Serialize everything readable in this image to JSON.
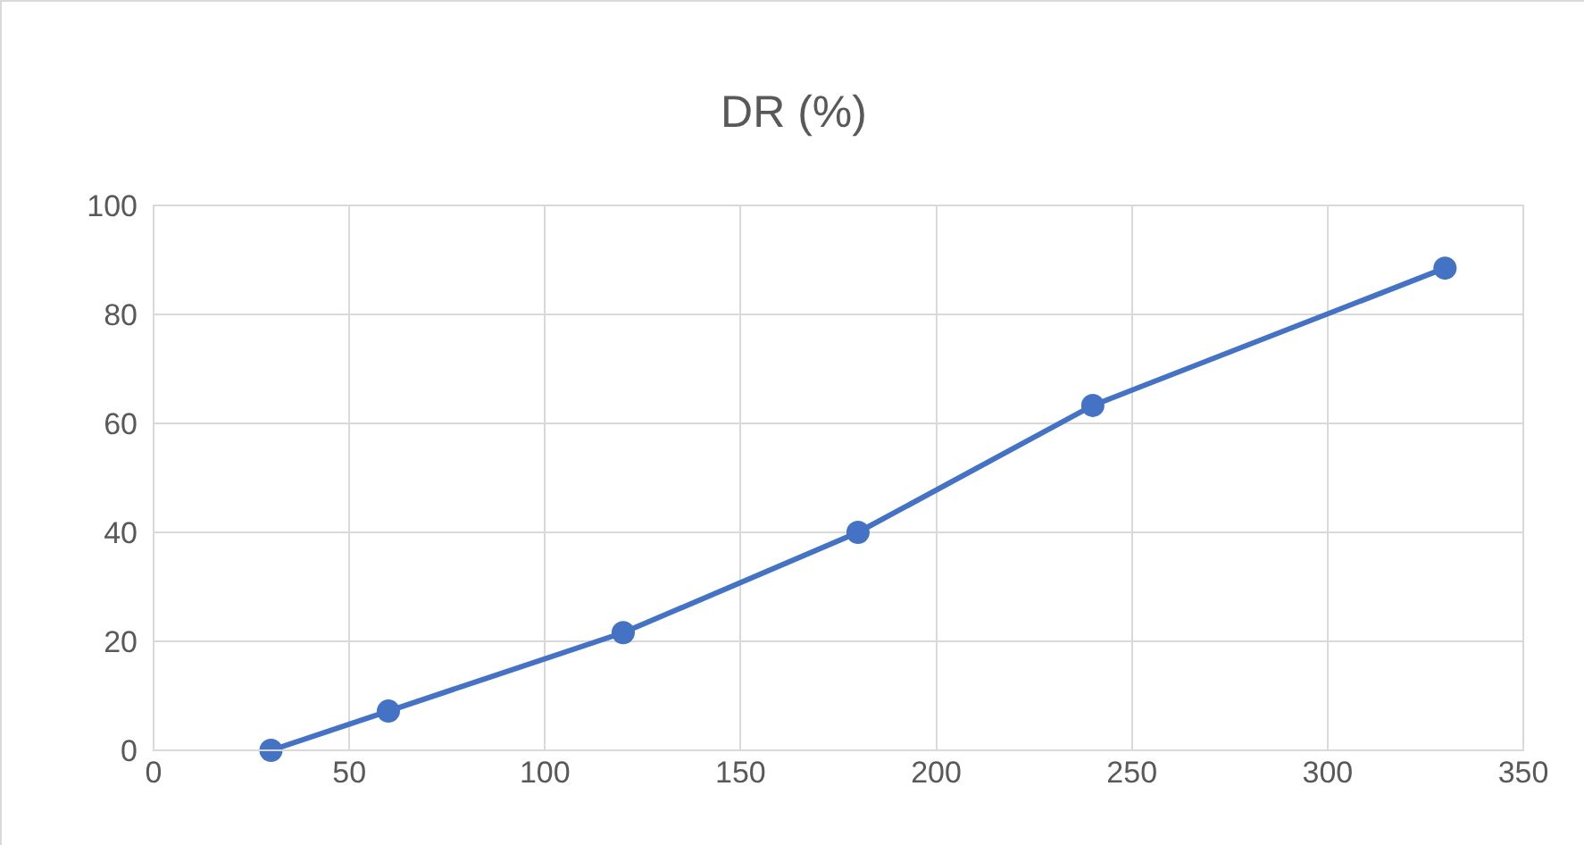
{
  "chart_data": {
    "type": "line",
    "title": "DR (%)",
    "x": [
      30,
      60,
      120,
      180,
      240,
      330
    ],
    "series": [
      {
        "color": "#4472c4",
        "values": [
          0,
          7.2,
          21.6,
          40,
          63.3,
          88.5
        ]
      }
    ],
    "xlim": [
      0,
      350
    ],
    "xticks": [
      0,
      50,
      100,
      150,
      200,
      250,
      300,
      350
    ],
    "ylim": [
      0,
      100
    ],
    "yticks": [
      0,
      20,
      40,
      60,
      80,
      100
    ],
    "grid": true,
    "marker": "circle",
    "line_style": "solid"
  }
}
